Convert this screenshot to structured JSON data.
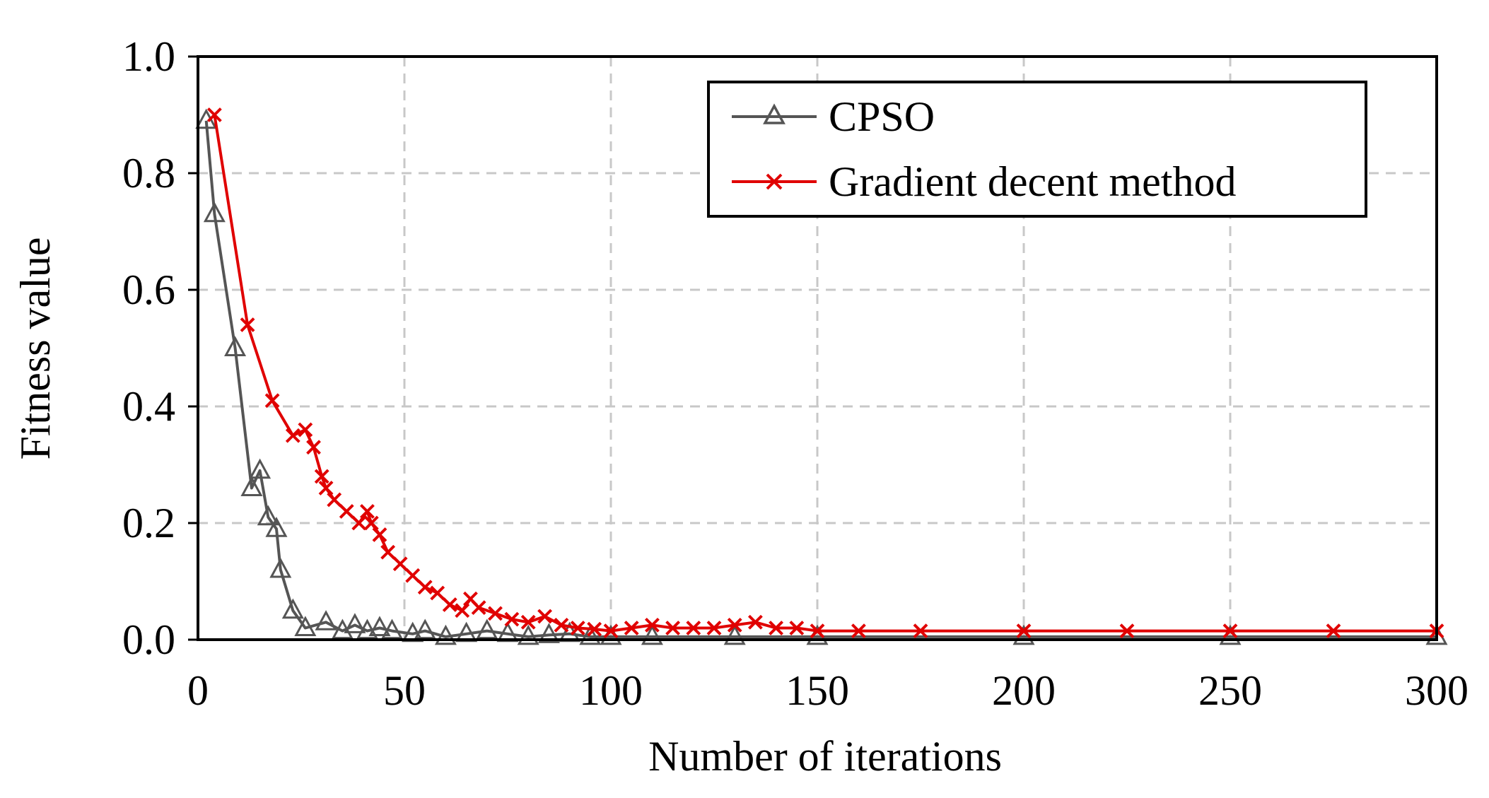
{
  "chart_data": {
    "type": "line",
    "title": "",
    "xlabel": "Number of iterations",
    "ylabel": "Fitness value",
    "xlim": [
      0,
      300
    ],
    "ylim": [
      0,
      1.0
    ],
    "x_ticks": [
      "0",
      "50",
      "100",
      "150",
      "200",
      "250",
      "300"
    ],
    "y_ticks": [
      "0.0",
      "0.2",
      "0.4",
      "0.6",
      "0.8",
      "1.0"
    ],
    "grid": true,
    "legend_position": "top-right",
    "series": [
      {
        "name": "CPSO",
        "color": "#555555",
        "marker": "triangle",
        "x": [
          2,
          4,
          9,
          13,
          15,
          17,
          19,
          20,
          23,
          26,
          31,
          35,
          38,
          41,
          44,
          47,
          52,
          55,
          60,
          65,
          70,
          75,
          80,
          85,
          90,
          95,
          100,
          110,
          130,
          150,
          200,
          250,
          300
        ],
        "values": [
          0.89,
          0.73,
          0.5,
          0.26,
          0.29,
          0.21,
          0.19,
          0.12,
          0.05,
          0.02,
          0.03,
          0.015,
          0.025,
          0.015,
          0.02,
          0.015,
          0.01,
          0.015,
          0.005,
          0.01,
          0.015,
          0.01,
          0.005,
          0.008,
          0.01,
          0.005,
          0.005,
          0.005,
          0.005,
          0.005,
          0.005,
          0.005,
          0.005
        ]
      },
      {
        "name": "Gradient decent method",
        "color": "#E00000",
        "marker": "x",
        "x": [
          4,
          12,
          18,
          23,
          26,
          28,
          30,
          31,
          33,
          36,
          39,
          41,
          42,
          44,
          46,
          49,
          52,
          55,
          58,
          61,
          64,
          66,
          68,
          72,
          76,
          80,
          84,
          88,
          92,
          96,
          100,
          105,
          110,
          115,
          120,
          125,
          130,
          135,
          140,
          145,
          150,
          160,
          175,
          200,
          225,
          250,
          275,
          300
        ],
        "values": [
          0.9,
          0.54,
          0.41,
          0.35,
          0.36,
          0.33,
          0.28,
          0.26,
          0.24,
          0.22,
          0.2,
          0.22,
          0.2,
          0.18,
          0.15,
          0.13,
          0.11,
          0.09,
          0.08,
          0.06,
          0.05,
          0.07,
          0.055,
          0.045,
          0.035,
          0.03,
          0.04,
          0.025,
          0.02,
          0.018,
          0.015,
          0.02,
          0.025,
          0.02,
          0.02,
          0.02,
          0.025,
          0.03,
          0.02,
          0.02,
          0.015,
          0.015,
          0.015,
          0.015,
          0.015,
          0.015,
          0.015,
          0.015
        ]
      }
    ]
  }
}
